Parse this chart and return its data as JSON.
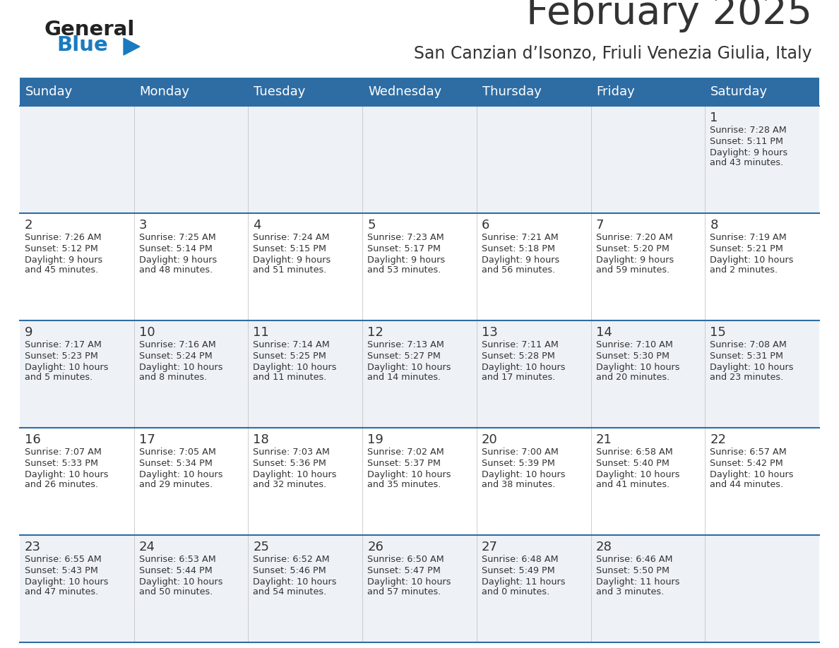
{
  "title": "February 2025",
  "subtitle": "San Canzian d’Isonzo, Friuli Venezia Giulia, Italy",
  "days_of_week": [
    "Sunday",
    "Monday",
    "Tuesday",
    "Wednesday",
    "Thursday",
    "Friday",
    "Saturday"
  ],
  "header_bg": "#2e6da4",
  "header_text": "#ffffff",
  "cell_bg_even": "#eef2f7",
  "cell_bg_odd": "#ffffff",
  "row_line_color": "#2e6da4",
  "text_color": "#333333",
  "day_number_color": "#333333",
  "logo_general_color": "#222222",
  "logo_blue_color": "#1a7abf",
  "calendar_data": [
    [
      null,
      null,
      null,
      null,
      null,
      null,
      {
        "day": 1,
        "sunrise": "7:28 AM",
        "sunset": "5:11 PM",
        "daylight": "9 hours and 43 minutes."
      }
    ],
    [
      {
        "day": 2,
        "sunrise": "7:26 AM",
        "sunset": "5:12 PM",
        "daylight": "9 hours and 45 minutes."
      },
      {
        "day": 3,
        "sunrise": "7:25 AM",
        "sunset": "5:14 PM",
        "daylight": "9 hours and 48 minutes."
      },
      {
        "day": 4,
        "sunrise": "7:24 AM",
        "sunset": "5:15 PM",
        "daylight": "9 hours and 51 minutes."
      },
      {
        "day": 5,
        "sunrise": "7:23 AM",
        "sunset": "5:17 PM",
        "daylight": "9 hours and 53 minutes."
      },
      {
        "day": 6,
        "sunrise": "7:21 AM",
        "sunset": "5:18 PM",
        "daylight": "9 hours and 56 minutes."
      },
      {
        "day": 7,
        "sunrise": "7:20 AM",
        "sunset": "5:20 PM",
        "daylight": "9 hours and 59 minutes."
      },
      {
        "day": 8,
        "sunrise": "7:19 AM",
        "sunset": "5:21 PM",
        "daylight": "10 hours and 2 minutes."
      }
    ],
    [
      {
        "day": 9,
        "sunrise": "7:17 AM",
        "sunset": "5:23 PM",
        "daylight": "10 hours and 5 minutes."
      },
      {
        "day": 10,
        "sunrise": "7:16 AM",
        "sunset": "5:24 PM",
        "daylight": "10 hours and 8 minutes."
      },
      {
        "day": 11,
        "sunrise": "7:14 AM",
        "sunset": "5:25 PM",
        "daylight": "10 hours and 11 minutes."
      },
      {
        "day": 12,
        "sunrise": "7:13 AM",
        "sunset": "5:27 PM",
        "daylight": "10 hours and 14 minutes."
      },
      {
        "day": 13,
        "sunrise": "7:11 AM",
        "sunset": "5:28 PM",
        "daylight": "10 hours and 17 minutes."
      },
      {
        "day": 14,
        "sunrise": "7:10 AM",
        "sunset": "5:30 PM",
        "daylight": "10 hours and 20 minutes."
      },
      {
        "day": 15,
        "sunrise": "7:08 AM",
        "sunset": "5:31 PM",
        "daylight": "10 hours and 23 minutes."
      }
    ],
    [
      {
        "day": 16,
        "sunrise": "7:07 AM",
        "sunset": "5:33 PM",
        "daylight": "10 hours and 26 minutes."
      },
      {
        "day": 17,
        "sunrise": "7:05 AM",
        "sunset": "5:34 PM",
        "daylight": "10 hours and 29 minutes."
      },
      {
        "day": 18,
        "sunrise": "7:03 AM",
        "sunset": "5:36 PM",
        "daylight": "10 hours and 32 minutes."
      },
      {
        "day": 19,
        "sunrise": "7:02 AM",
        "sunset": "5:37 PM",
        "daylight": "10 hours and 35 minutes."
      },
      {
        "day": 20,
        "sunrise": "7:00 AM",
        "sunset": "5:39 PM",
        "daylight": "10 hours and 38 minutes."
      },
      {
        "day": 21,
        "sunrise": "6:58 AM",
        "sunset": "5:40 PM",
        "daylight": "10 hours and 41 minutes."
      },
      {
        "day": 22,
        "sunrise": "6:57 AM",
        "sunset": "5:42 PM",
        "daylight": "10 hours and 44 minutes."
      }
    ],
    [
      {
        "day": 23,
        "sunrise": "6:55 AM",
        "sunset": "5:43 PM",
        "daylight": "10 hours and 47 minutes."
      },
      {
        "day": 24,
        "sunrise": "6:53 AM",
        "sunset": "5:44 PM",
        "daylight": "10 hours and 50 minutes."
      },
      {
        "day": 25,
        "sunrise": "6:52 AM",
        "sunset": "5:46 PM",
        "daylight": "10 hours and 54 minutes."
      },
      {
        "day": 26,
        "sunrise": "6:50 AM",
        "sunset": "5:47 PM",
        "daylight": "10 hours and 57 minutes."
      },
      {
        "day": 27,
        "sunrise": "6:48 AM",
        "sunset": "5:49 PM",
        "daylight": "11 hours and 0 minutes."
      },
      {
        "day": 28,
        "sunrise": "6:46 AM",
        "sunset": "5:50 PM",
        "daylight": "11 hours and 3 minutes."
      },
      null
    ]
  ]
}
